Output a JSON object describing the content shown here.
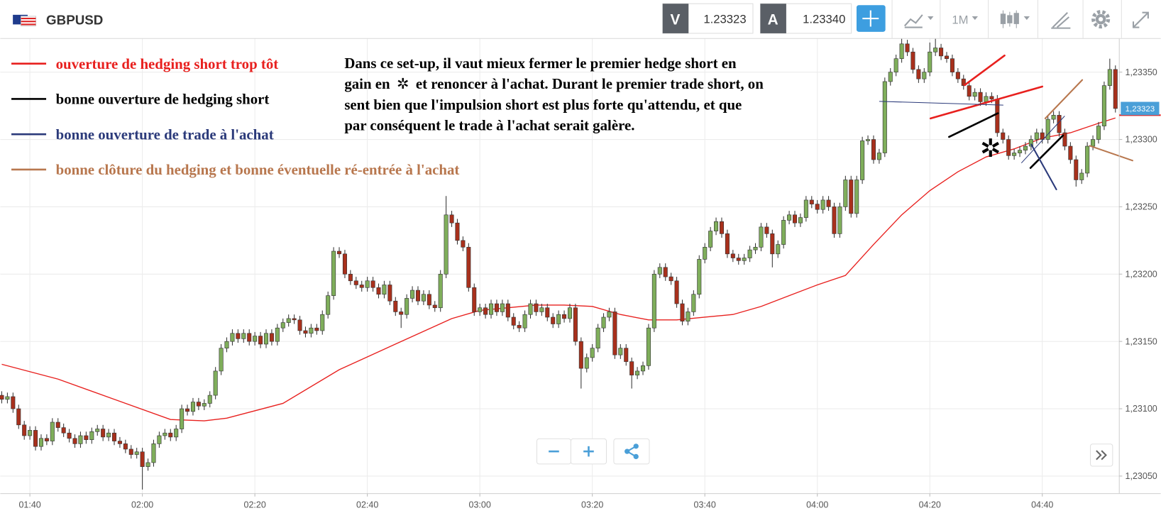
{
  "header": {
    "symbol": "GBPUSD",
    "sell_label": "V",
    "sell_price": "1.23323",
    "buy_label": "A",
    "buy_price": "1.23340",
    "timeframe": "1M"
  },
  "legend": [
    {
      "color": "#e8201e",
      "label": "ouverture de hedging short trop tôt"
    },
    {
      "color": "#000000",
      "label": "bonne ouverture de hedging short"
    },
    {
      "color": "#2b3a7a",
      "label": "bonne ouverture de trade à l'achat"
    },
    {
      "color": "#b8774e",
      "label": "bonne clôture du hedging et bonne éventuelle ré-entrée à l'achat"
    }
  ],
  "annotation": {
    "line1": "Dans ce set-up, il vaut mieux fermer le premier hedge short en",
    "line2_before": "gain en",
    "symbol": "✲",
    "line2_after": "et renoncer à l'achat. Durant le premier trade short, on",
    "line3": "sent bien que l'impulsion short est plus forte qu'attendu, et que",
    "line4": "par conséquent le trade à l'achat serait galère."
  },
  "chart_data": {
    "type": "candlestick",
    "up_color": "#7fae5b",
    "down_color": "#a8301c",
    "grid": true,
    "ylim": [
      1.23037,
      1.23375
    ],
    "yticks": [
      {
        "value": 1.2305,
        "label": "1,23050"
      },
      {
        "value": 1.231,
        "label": "1,23100"
      },
      {
        "value": 1.2315,
        "label": "1,23150"
      },
      {
        "value": 1.232,
        "label": "1,23200"
      },
      {
        "value": 1.2325,
        "label": "1,23250"
      },
      {
        "value": 1.233,
        "label": "1,23300"
      },
      {
        "value": 1.2335,
        "label": "1,23350"
      }
    ],
    "xticks": [
      {
        "value": 5,
        "label": "01:40"
      },
      {
        "value": 25,
        "label": "02:00"
      },
      {
        "value": 45,
        "label": "02:20"
      },
      {
        "value": 65,
        "label": "02:40"
      },
      {
        "value": 85,
        "label": "03:00"
      },
      {
        "value": 105,
        "label": "03:20"
      },
      {
        "value": 125,
        "label": "03:40"
      },
      {
        "value": 145,
        "label": "04:00"
      },
      {
        "value": 165,
        "label": "04:20"
      },
      {
        "value": 185,
        "label": "04:40"
      }
    ],
    "last_price": {
      "value": 1.23323,
      "label": "1,23323",
      "color": "#4a9fd8",
      "line_color": "#e8201e"
    },
    "open": [
      1.2311,
      1.23107,
      1.23109,
      1.231,
      1.23088,
      1.2308,
      1.23084,
      1.23072,
      1.23078,
      1.23076,
      1.2309,
      1.23086,
      1.23082,
      1.23078,
      1.23074,
      1.2308,
      1.23077,
      1.23083,
      1.23085,
      1.23079,
      1.23082,
      1.23076,
      1.23074,
      1.2307,
      1.23066,
      1.23068,
      1.23057,
      1.2306,
      1.23074,
      1.2308,
      1.23082,
      1.23079,
      1.23085,
      1.231,
      1.23098,
      1.23105,
      1.23102,
      1.23104,
      1.2311,
      1.23128,
      1.23145,
      1.2315,
      1.23156,
      1.23152,
      1.23156,
      1.2315,
      1.23154,
      1.23148,
      1.23156,
      1.2315,
      1.2316,
      1.23164,
      1.23167,
      1.23166,
      1.23158,
      1.23156,
      1.2316,
      1.23158,
      1.2317,
      1.23184,
      1.23217,
      1.23215,
      1.232,
      1.23195,
      1.23192,
      1.2319,
      1.23195,
      1.2319,
      1.23185,
      1.23192,
      1.2318,
      1.23172,
      1.2317,
      1.23182,
      1.23188,
      1.2318,
      1.23185,
      1.23177,
      1.23175,
      1.232,
      1.23244,
      1.23238,
      1.23225,
      1.2322,
      1.2319,
      1.23172,
      1.23175,
      1.2317,
      1.23178,
      1.23172,
      1.23178,
      1.23168,
      1.23162,
      1.2316,
      1.2317,
      1.23178,
      1.23172,
      1.23175,
      1.23168,
      1.23163,
      1.2317,
      1.23167,
      1.23175,
      1.2315,
      1.2313,
      1.23138,
      1.23145,
      1.2316,
      1.23168,
      1.23172,
      1.2314,
      1.23145,
      1.23135,
      1.23125,
      1.23128,
      1.23132,
      1.2316,
      1.232,
      1.23205,
      1.23198,
      1.23195,
      1.23178,
      1.23165,
      1.23172,
      1.23185,
      1.23211,
      1.2322,
      1.23232,
      1.23239,
      1.2323,
      1.23215,
      1.23212,
      1.2321,
      1.23212,
      1.23218,
      1.2322,
      1.23235,
      1.2323,
      1.23215,
      1.23222,
      1.2324,
      1.23244,
      1.23238,
      1.23242,
      1.23255,
      1.23252,
      1.23248,
      1.23255,
      1.2325,
      1.2323,
      1.2325,
      1.2327,
      1.23245,
      1.2327,
      1.23299,
      1.233,
      1.23285,
      1.2329,
      1.23343,
      1.2335,
      1.2336,
      1.23371,
      1.23365,
      1.23352,
      1.23345,
      1.2335,
      1.23365,
      1.23368,
      1.23362,
      1.2336,
      1.2335,
      1.23345,
      1.2334,
      1.23332,
      1.23335,
      1.23328,
      1.23332,
      1.2333,
      1.23305,
      1.233,
      1.23288,
      1.2329,
      1.23292,
      1.23295,
      1.233,
      1.23305,
      1.233,
      1.23315,
      1.23318,
      1.23305,
      1.23295,
      1.23285,
      1.2327,
      1.23275,
      1.23295,
      1.233,
      1.2331,
      1.2334,
      1.23352
    ],
    "high": [
      1.23113,
      1.23112,
      1.23112,
      1.23103,
      1.23091,
      1.23087,
      1.23087,
      1.23081,
      1.23081,
      1.23093,
      1.23093,
      1.23089,
      1.23085,
      1.23081,
      1.23083,
      1.23083,
      1.23086,
      1.23088,
      1.23088,
      1.23085,
      1.23085,
      1.23079,
      1.23077,
      1.23073,
      1.23071,
      1.23071,
      1.23063,
      1.23077,
      1.23083,
      1.23085,
      1.23085,
      1.23088,
      1.23103,
      1.23103,
      1.23108,
      1.23108,
      1.23107,
      1.23113,
      1.23131,
      1.23148,
      1.23153,
      1.23159,
      1.23159,
      1.23159,
      1.23159,
      1.23157,
      1.23157,
      1.23159,
      1.23159,
      1.23163,
      1.23167,
      1.2317,
      1.2317,
      1.23169,
      1.23161,
      1.23163,
      1.23163,
      1.23173,
      1.23187,
      1.2322,
      1.2322,
      1.23218,
      1.23203,
      1.23198,
      1.23195,
      1.23198,
      1.23198,
      1.23193,
      1.23195,
      1.23195,
      1.23183,
      1.23175,
      1.23185,
      1.23191,
      1.23191,
      1.23188,
      1.23188,
      1.2318,
      1.23203,
      1.23258,
      1.23247,
      1.23241,
      1.23228,
      1.23223,
      1.23193,
      1.23178,
      1.23178,
      1.23181,
      1.23181,
      1.23181,
      1.23181,
      1.23171,
      1.23165,
      1.23173,
      1.23181,
      1.23181,
      1.23178,
      1.23178,
      1.23171,
      1.23173,
      1.23173,
      1.23178,
      1.23178,
      1.23153,
      1.23141,
      1.23148,
      1.23163,
      1.23171,
      1.23175,
      1.23175,
      1.23148,
      1.23148,
      1.23138,
      1.23131,
      1.23135,
      1.23163,
      1.23203,
      1.23208,
      1.23208,
      1.23201,
      1.23198,
      1.23181,
      1.23175,
      1.23188,
      1.23214,
      1.23223,
      1.23235,
      1.23242,
      1.23242,
      1.23233,
      1.23218,
      1.23215,
      1.23215,
      1.23221,
      1.23223,
      1.23238,
      1.23238,
      1.23233,
      1.23225,
      1.23243,
      1.23247,
      1.23247,
      1.23245,
      1.23258,
      1.23258,
      1.23255,
      1.23258,
      1.23258,
      1.23253,
      1.23253,
      1.23273,
      1.23273,
      1.23273,
      1.23302,
      1.23303,
      1.23303,
      1.23293,
      1.23346,
      1.23353,
      1.23363,
      1.23378,
      1.23374,
      1.23368,
      1.23355,
      1.23353,
      1.23372,
      1.23375,
      1.23371,
      1.23365,
      1.23363,
      1.23353,
      1.23348,
      1.23343,
      1.23338,
      1.23338,
      1.23335,
      1.23335,
      1.23333,
      1.23308,
      1.23303,
      1.23293,
      1.23295,
      1.23298,
      1.23303,
      1.23308,
      1.23308,
      1.23318,
      1.23321,
      1.23321,
      1.23308,
      1.23298,
      1.23288,
      1.23278,
      1.23298,
      1.23303,
      1.23313,
      1.23343,
      1.2336,
      1.23355
    ],
    "low": [
      1.23104,
      1.23104,
      1.23097,
      1.23085,
      1.23077,
      1.23077,
      1.23069,
      1.23069,
      1.23073,
      1.23073,
      1.23083,
      1.23079,
      1.23075,
      1.23071,
      1.23071,
      1.23074,
      1.23074,
      1.2308,
      1.23076,
      1.23076,
      1.23073,
      1.23071,
      1.23067,
      1.23063,
      1.23063,
      1.2304,
      1.23054,
      1.23057,
      1.23071,
      1.23077,
      1.23076,
      1.23076,
      1.23082,
      1.23095,
      1.23095,
      1.23099,
      1.23099,
      1.23101,
      1.23107,
      1.23125,
      1.23142,
      1.23147,
      1.23149,
      1.23149,
      1.23147,
      1.23147,
      1.23145,
      1.23145,
      1.23147,
      1.23147,
      1.23157,
      1.23161,
      1.23163,
      1.23155,
      1.23153,
      1.23153,
      1.23155,
      1.23155,
      1.23167,
      1.23181,
      1.23212,
      1.23197,
      1.23192,
      1.23189,
      1.23187,
      1.23187,
      1.23187,
      1.23182,
      1.23182,
      1.23177,
      1.23169,
      1.2316,
      1.23167,
      1.23179,
      1.23177,
      1.23177,
      1.23174,
      1.23172,
      1.23172,
      1.23197,
      1.23235,
      1.23222,
      1.23217,
      1.23187,
      1.23169,
      1.23169,
      1.23167,
      1.23167,
      1.23169,
      1.23169,
      1.23165,
      1.23159,
      1.23157,
      1.23157,
      1.23167,
      1.23169,
      1.23169,
      1.23165,
      1.2316,
      1.2316,
      1.23164,
      1.23164,
      1.23147,
      1.23115,
      1.23127,
      1.23135,
      1.23142,
      1.23157,
      1.23165,
      1.23137,
      1.23137,
      1.23132,
      1.23115,
      1.23122,
      1.23125,
      1.23129,
      1.23157,
      1.23197,
      1.23195,
      1.23192,
      1.23175,
      1.23162,
      1.23162,
      1.23169,
      1.23182,
      1.23208,
      1.23217,
      1.23229,
      1.23227,
      1.23212,
      1.23209,
      1.23207,
      1.23207,
      1.23209,
      1.23215,
      1.23217,
      1.23227,
      1.23205,
      1.23212,
      1.23219,
      1.23237,
      1.23235,
      1.23235,
      1.23239,
      1.23249,
      1.23245,
      1.23245,
      1.23247,
      1.23227,
      1.23227,
      1.23247,
      1.23242,
      1.23242,
      1.23267,
      1.23296,
      1.23282,
      1.23282,
      1.23287,
      1.2334,
      1.23347,
      1.23357,
      1.23362,
      1.23349,
      1.23342,
      1.23342,
      1.23347,
      1.23362,
      1.23359,
      1.23357,
      1.23347,
      1.23342,
      1.23337,
      1.23329,
      1.23329,
      1.23325,
      1.23325,
      1.23327,
      1.23302,
      1.23297,
      1.23285,
      1.23285,
      1.23287,
      1.23289,
      1.23292,
      1.23297,
      1.23297,
      1.23297,
      1.23312,
      1.23302,
      1.23292,
      1.23282,
      1.23265,
      1.23267,
      1.23272,
      1.23292,
      1.23297,
      1.23307,
      1.23337,
      1.2332
    ],
    "close": [
      1.23107,
      1.23109,
      1.231,
      1.23088,
      1.2308,
      1.23084,
      1.23072,
      1.23078,
      1.23076,
      1.2309,
      1.23086,
      1.23082,
      1.23078,
      1.23074,
      1.2308,
      1.23077,
      1.23083,
      1.23085,
      1.23079,
      1.23082,
      1.23076,
      1.23074,
      1.2307,
      1.23066,
      1.23068,
      1.23057,
      1.2306,
      1.23074,
      1.2308,
      1.23082,
      1.23079,
      1.23085,
      1.231,
      1.23098,
      1.23105,
      1.23102,
      1.23104,
      1.2311,
      1.23128,
      1.23145,
      1.2315,
      1.23156,
      1.23152,
      1.23156,
      1.2315,
      1.23154,
      1.23148,
      1.23156,
      1.2315,
      1.2316,
      1.23164,
      1.23167,
      1.23166,
      1.23158,
      1.23156,
      1.2316,
      1.23158,
      1.2317,
      1.23184,
      1.23217,
      1.23215,
      1.232,
      1.23195,
      1.23192,
      1.2319,
      1.23195,
      1.2319,
      1.23185,
      1.23192,
      1.2318,
      1.23172,
      1.2317,
      1.23182,
      1.23188,
      1.2318,
      1.23185,
      1.23177,
      1.23175,
      1.232,
      1.23244,
      1.23238,
      1.23225,
      1.2322,
      1.2319,
      1.23172,
      1.23175,
      1.2317,
      1.23178,
      1.23172,
      1.23178,
      1.23168,
      1.23162,
      1.2316,
      1.2317,
      1.23178,
      1.23172,
      1.23175,
      1.23168,
      1.23163,
      1.2317,
      1.23167,
      1.23175,
      1.2315,
      1.2313,
      1.23138,
      1.23145,
      1.2316,
      1.23168,
      1.23172,
      1.2314,
      1.23145,
      1.23135,
      1.23125,
      1.23128,
      1.23132,
      1.2316,
      1.232,
      1.23205,
      1.23198,
      1.23195,
      1.23178,
      1.23165,
      1.23172,
      1.23185,
      1.23211,
      1.2322,
      1.23232,
      1.23239,
      1.2323,
      1.23215,
      1.23212,
      1.2321,
      1.23212,
      1.23218,
      1.2322,
      1.23235,
      1.2323,
      1.23215,
      1.23222,
      1.2324,
      1.23244,
      1.23238,
      1.23242,
      1.23255,
      1.23252,
      1.23248,
      1.23255,
      1.2325,
      1.2323,
      1.2325,
      1.2327,
      1.23245,
      1.2327,
      1.23299,
      1.233,
      1.23285,
      1.2329,
      1.23343,
      1.2335,
      1.2336,
      1.23371,
      1.23365,
      1.23352,
      1.23345,
      1.2335,
      1.23365,
      1.23368,
      1.23362,
      1.2336,
      1.2335,
      1.23345,
      1.2334,
      1.23332,
      1.23335,
      1.23328,
      1.23332,
      1.2333,
      1.23305,
      1.233,
      1.23288,
      1.2329,
      1.23292,
      1.23295,
      1.233,
      1.23305,
      1.233,
      1.23315,
      1.23318,
      1.23305,
      1.23295,
      1.23285,
      1.2327,
      1.23275,
      1.23295,
      1.233,
      1.2331,
      1.2334,
      1.23352,
      1.23323
    ],
    "moving_average": {
      "color": "#e8201e",
      "x": [
        0,
        10,
        20,
        30,
        36,
        40,
        50,
        60,
        70,
        80,
        85,
        95,
        100,
        105,
        110,
        115,
        120,
        125,
        130,
        135,
        140,
        145,
        150,
        155,
        160,
        165,
        170,
        175,
        180,
        185,
        190,
        195,
        198
      ],
      "values": [
        1.23133,
        1.23122,
        1.23107,
        1.23092,
        1.23091,
        1.23093,
        1.23104,
        1.23129,
        1.23148,
        1.23167,
        1.23173,
        1.23177,
        1.23177,
        1.23176,
        1.2317,
        1.23166,
        1.23166,
        1.23168,
        1.2317,
        1.23176,
        1.23184,
        1.23192,
        1.23199,
        1.23222,
        1.23244,
        1.23262,
        1.23276,
        1.23287,
        1.23293,
        1.23301,
        1.23305,
        1.23312,
        1.23316
      ]
    }
  }
}
